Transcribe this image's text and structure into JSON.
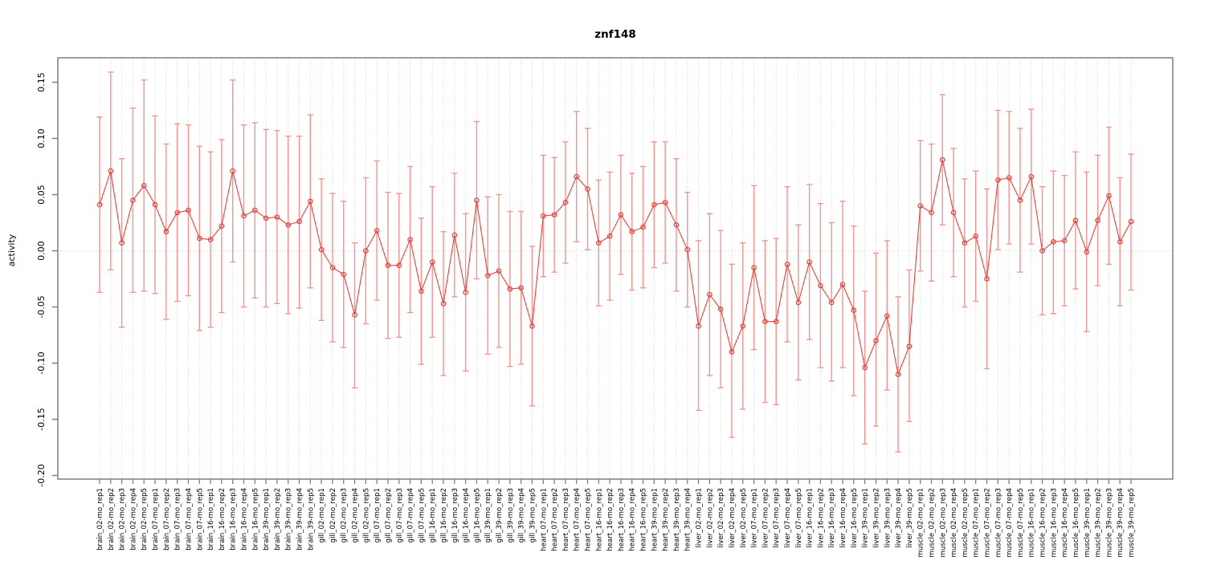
{
  "page": {
    "background": "#ffffff"
  },
  "chart_data": {
    "type": "scatter",
    "subtype": "error-bar-series",
    "title": "znf148",
    "ylabel": "activity",
    "xlabel": "",
    "legend": "none",
    "marker": "open-circle",
    "line_between_points": true,
    "grid": {
      "vertical_dotted_per_category": true,
      "zero_line_dotted": true
    },
    "ylim": [
      -0.203,
      0.172
    ],
    "ytick_labels": [
      "0.15",
      "0.10",
      "0.05",
      "0.00",
      "-0.05",
      "-0.10",
      "-0.15",
      "-0.20"
    ],
    "ytick_values": [
      0.15,
      0.1,
      0.05,
      0.0,
      -0.05,
      -0.1,
      -0.15,
      -0.2
    ],
    "colors": {
      "point_line": "#e8423b",
      "error_bar": "#f29490",
      "gridline": "#d4d4d4",
      "axis_box": "#7f7f7f",
      "text": "#000000"
    },
    "categories": [
      "brain_02-mo_rep1",
      "brain_02-mo_rep2",
      "brain_02-mo_rep3",
      "brain_02-mo_rep4",
      "brain_02-mo_rep5",
      "brain_07-mo_rep1",
      "brain_07-mo_rep2",
      "brain_07-mo_rep3",
      "brain_07-mo_rep4",
      "brain_07-mo_rep5",
      "brain_16-mo_rep1",
      "brain_16-mo_rep2",
      "brain_16-mo_rep3",
      "brain_16-mo_rep4",
      "brain_16-mo_rep5",
      "brain_39-mo_rep1",
      "brain_39-mo_rep2",
      "brain_39-mo_rep3",
      "brain_39-mo_rep4",
      "brain_39-mo_rep5",
      "gill_02-mo_rep1",
      "gill_02-mo_rep2",
      "gill_02-mo_rep3",
      "gill_02-mo_rep4",
      "gill_02-mo_rep5",
      "gill_07-mo_rep1",
      "gill_07-mo_rep2",
      "gill_07-mo_rep3",
      "gill_07-mo_rep4",
      "gill_07-mo_rep5",
      "gill_16-mo_rep1",
      "gill_16-mo_rep2",
      "gill_16-mo_rep3",
      "gill_16-mo_rep4",
      "gill_16-mo_rep5",
      "gill_39-mo_rep1",
      "gill_39-mo_rep2",
      "gill_39-mo_rep3",
      "gill_39-mo_rep4",
      "gill_39-mo_rep5",
      "heart_07-mo_rep1",
      "heart_07-mo_rep2",
      "heart_07-mo_rep3",
      "heart_07-mo_rep4",
      "heart_07-mo_rep5",
      "heart_16-mo_rep1",
      "heart_16-mo_rep2",
      "heart_16-mo_rep3",
      "heart_16-mo_rep4",
      "heart_16-mo_rep5",
      "heart_39-mo_rep1",
      "heart_39-mo_rep2",
      "heart_39-mo_rep3",
      "heart_39-mo_rep4",
      "liver_02-mo_rep1",
      "liver_02-mo_rep2",
      "liver_02-mo_rep3",
      "liver_02-mo_rep4",
      "liver_02-mo_rep5",
      "liver_07-mo_rep1",
      "liver_07-mo_rep2",
      "liver_07-mo_rep3",
      "liver_07-mo_rep4",
      "liver_07-mo_rep5",
      "liver_16-mo_rep1",
      "liver_16-mo_rep2",
      "liver_16-mo_rep3",
      "liver_16-mo_rep4",
      "liver_16-mo_rep5",
      "liver_39-mo_rep1",
      "liver_39-mo_rep2",
      "liver_39-mo_rep3",
      "liver_39-mo_rep4",
      "liver_39-mo_rep5",
      "muscle_02-mo_rep1",
      "muscle_02-mo_rep2",
      "muscle_02-mo_rep3",
      "muscle_02-mo_rep4",
      "muscle_02-mo_rep5",
      "muscle_07-mo_rep1",
      "muscle_07-mo_rep2",
      "muscle_07-mo_rep3",
      "muscle_07-mo_rep4",
      "muscle_07-mo_rep5",
      "muscle_16-mo_rep1",
      "muscle_16-mo_rep2",
      "muscle_16-mo_rep3",
      "muscle_16-mo_rep4",
      "muscle_16-mo_rep5",
      "muscle_39-mo_rep1",
      "muscle_39-mo_rep2",
      "muscle_39-mo_rep3",
      "muscle_39-mo_rep4",
      "muscle_39-mo_rep5"
    ],
    "series": [
      {
        "name": "activity",
        "values": [
          0.041,
          0.071,
          0.007,
          0.045,
          0.058,
          0.041,
          0.017,
          0.034,
          0.036,
          0.011,
          0.01,
          0.022,
          0.071,
          0.031,
          0.036,
          0.029,
          0.03,
          0.023,
          0.026,
          0.044,
          0.001,
          -0.015,
          -0.021,
          -0.057,
          0.0,
          0.018,
          -0.013,
          -0.013,
          0.01,
          -0.036,
          -0.01,
          -0.047,
          0.014,
          -0.037,
          0.045,
          -0.022,
          -0.018,
          -0.034,
          -0.033,
          -0.067,
          0.031,
          0.032,
          0.043,
          0.066,
          0.055,
          0.007,
          0.013,
          0.032,
          0.017,
          0.021,
          0.041,
          0.043,
          0.023,
          0.001,
          -0.067,
          -0.039,
          -0.052,
          -0.09,
          -0.067,
          -0.015,
          -0.063,
          -0.063,
          -0.012,
          -0.046,
          -0.01,
          -0.031,
          -0.046,
          -0.03,
          -0.053,
          -0.104,
          -0.08,
          -0.058,
          -0.11,
          -0.085,
          0.04,
          0.034,
          0.081,
          0.034,
          0.007,
          0.013,
          -0.025,
          0.063,
          0.065,
          0.045,
          0.066,
          0.0,
          0.008,
          0.009,
          0.027,
          -0.001,
          0.027,
          0.049,
          0.008,
          0.026
        ],
        "err_low": [
          -0.037,
          -0.017,
          -0.068,
          -0.037,
          -0.036,
          -0.038,
          -0.061,
          -0.045,
          -0.04,
          -0.071,
          -0.068,
          -0.055,
          -0.01,
          -0.05,
          -0.042,
          -0.05,
          -0.047,
          -0.056,
          -0.051,
          -0.033,
          -0.062,
          -0.081,
          -0.086,
          -0.122,
          -0.065,
          -0.044,
          -0.078,
          -0.077,
          -0.055,
          -0.101,
          -0.077,
          -0.111,
          -0.041,
          -0.107,
          -0.025,
          -0.092,
          -0.086,
          -0.103,
          -0.101,
          -0.138,
          -0.023,
          -0.019,
          -0.011,
          0.008,
          0.001,
          -0.049,
          -0.044,
          -0.021,
          -0.035,
          -0.033,
          -0.015,
          -0.011,
          -0.036,
          -0.05,
          -0.142,
          -0.111,
          -0.122,
          -0.166,
          -0.141,
          -0.088,
          -0.135,
          -0.137,
          -0.081,
          -0.115,
          -0.079,
          -0.104,
          -0.116,
          -0.104,
          -0.129,
          -0.172,
          -0.156,
          -0.124,
          -0.179,
          -0.152,
          -0.018,
          -0.027,
          0.023,
          -0.023,
          -0.05,
          -0.045,
          -0.105,
          0.001,
          0.006,
          -0.019,
          0.006,
          -0.057,
          -0.056,
          -0.049,
          -0.034,
          -0.072,
          -0.031,
          -0.012,
          -0.049,
          -0.035
        ],
        "err_high": [
          0.119,
          0.159,
          0.082,
          0.127,
          0.152,
          0.12,
          0.095,
          0.113,
          0.112,
          0.093,
          0.088,
          0.099,
          0.152,
          0.112,
          0.114,
          0.108,
          0.107,
          0.102,
          0.102,
          0.121,
          0.064,
          0.051,
          0.044,
          0.007,
          0.065,
          0.08,
          0.052,
          0.051,
          0.075,
          0.029,
          0.057,
          0.017,
          0.069,
          0.033,
          0.115,
          0.048,
          0.05,
          0.035,
          0.035,
          0.004,
          0.085,
          0.083,
          0.097,
          0.124,
          0.109,
          0.063,
          0.07,
          0.085,
          0.069,
          0.075,
          0.097,
          0.097,
          0.082,
          0.052,
          0.009,
          0.033,
          0.018,
          -0.012,
          0.007,
          0.058,
          0.009,
          0.011,
          0.057,
          0.023,
          0.059,
          0.042,
          0.025,
          0.044,
          0.022,
          -0.036,
          -0.002,
          0.009,
          -0.041,
          -0.017,
          0.098,
          0.095,
          0.139,
          0.091,
          0.064,
          0.071,
          0.055,
          0.125,
          0.124,
          0.109,
          0.126,
          0.057,
          0.071,
          0.067,
          0.088,
          0.07,
          0.085,
          0.11,
          0.065,
          0.086
        ]
      }
    ]
  }
}
